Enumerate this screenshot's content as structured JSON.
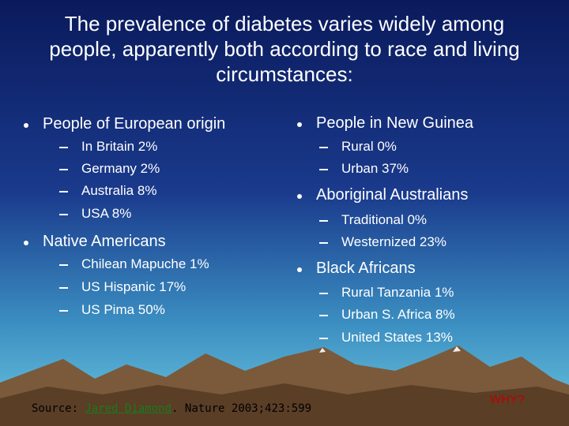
{
  "title": "The prevalence of diabetes varies widely among people, apparently both according to race and living circumstances:",
  "left": [
    {
      "heading": "People of European origin",
      "items": [
        "In Britain 2%",
        "Germany 2%",
        "Australia 8%",
        "USA 8%"
      ]
    },
    {
      "heading": "Native Americans",
      "items": [
        "Chilean Mapuche 1%",
        "US Hispanic 17%",
        "US Pima 50%"
      ]
    }
  ],
  "right": [
    {
      "heading": "People in New Guinea",
      "items": [
        "Rural 0%",
        "Urban 37%"
      ]
    },
    {
      "heading": "Aboriginal Australians",
      "items": [
        "Traditional 0%",
        "Westernized 23%"
      ]
    },
    {
      "heading": "Black Africans",
      "items": [
        "Rural Tanzania 1%",
        "Urban S. Africa 8%",
        "United States 13%"
      ]
    }
  ],
  "source": {
    "prefix": "Source:",
    "link": "Jared Diamond",
    "suffix": ". Nature 2003;423:599"
  },
  "note": "WHY?"
}
